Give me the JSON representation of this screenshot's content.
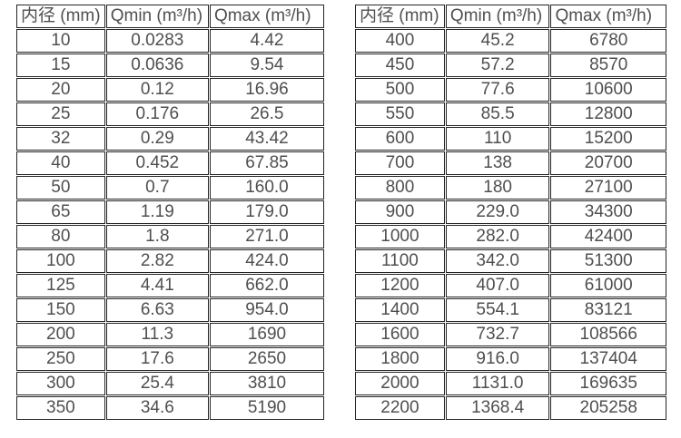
{
  "colors": {
    "background": "#ffffff",
    "border": "#242424",
    "text": "#4f4f4f"
  },
  "tables": [
    {
      "id": "small-diameters",
      "headers": [
        "内径 (mm)",
        "Qmin (m³/h)",
        "Qmax (m³/h)"
      ],
      "rows": [
        [
          "10",
          "0.0283",
          "4.42"
        ],
        [
          "15",
          "0.0636",
          "9.54"
        ],
        [
          "20",
          "0.12",
          "16.96"
        ],
        [
          "25",
          "0.176",
          "26.5"
        ],
        [
          "32",
          "0.29",
          "43.42"
        ],
        [
          "40",
          "0.452",
          "67.85"
        ],
        [
          "50",
          "0.7",
          "160.0"
        ],
        [
          "65",
          "1.19",
          "179.0"
        ],
        [
          "80",
          "1.8",
          "271.0"
        ],
        [
          "100",
          "2.82",
          "424.0"
        ],
        [
          "125",
          "4.41",
          "662.0"
        ],
        [
          "150",
          "6.63",
          "954.0"
        ],
        [
          "200",
          "11.3",
          "1690"
        ],
        [
          "250",
          "17.6",
          "2650"
        ],
        [
          "300",
          "25.4",
          "3810"
        ],
        [
          "350",
          "34.6",
          "5190"
        ]
      ]
    },
    {
      "id": "large-diameters",
      "headers": [
        "内径 (mm)",
        "Qmin (m³/h)",
        "Qmax (m³/h)"
      ],
      "rows": [
        [
          "400",
          "45.2",
          "6780"
        ],
        [
          "450",
          "57.2",
          "8570"
        ],
        [
          "500",
          "77.6",
          "10600"
        ],
        [
          "550",
          "85.5",
          "12800"
        ],
        [
          "600",
          "110",
          "15200"
        ],
        [
          "700",
          "138",
          "20700"
        ],
        [
          "800",
          "180",
          "27100"
        ],
        [
          "900",
          "229.0",
          "34300"
        ],
        [
          "1000",
          "282.0",
          "42400"
        ],
        [
          "1100",
          "342.0",
          "51300"
        ],
        [
          "1200",
          "407.0",
          "61000"
        ],
        [
          "1400",
          "554.1",
          "83121"
        ],
        [
          "1600",
          "732.7",
          "108566"
        ],
        [
          "1800",
          "916.0",
          "137404"
        ],
        [
          "2000",
          "1131.0",
          "169635"
        ],
        [
          "2200",
          "1368.4",
          "205258"
        ]
      ]
    }
  ]
}
